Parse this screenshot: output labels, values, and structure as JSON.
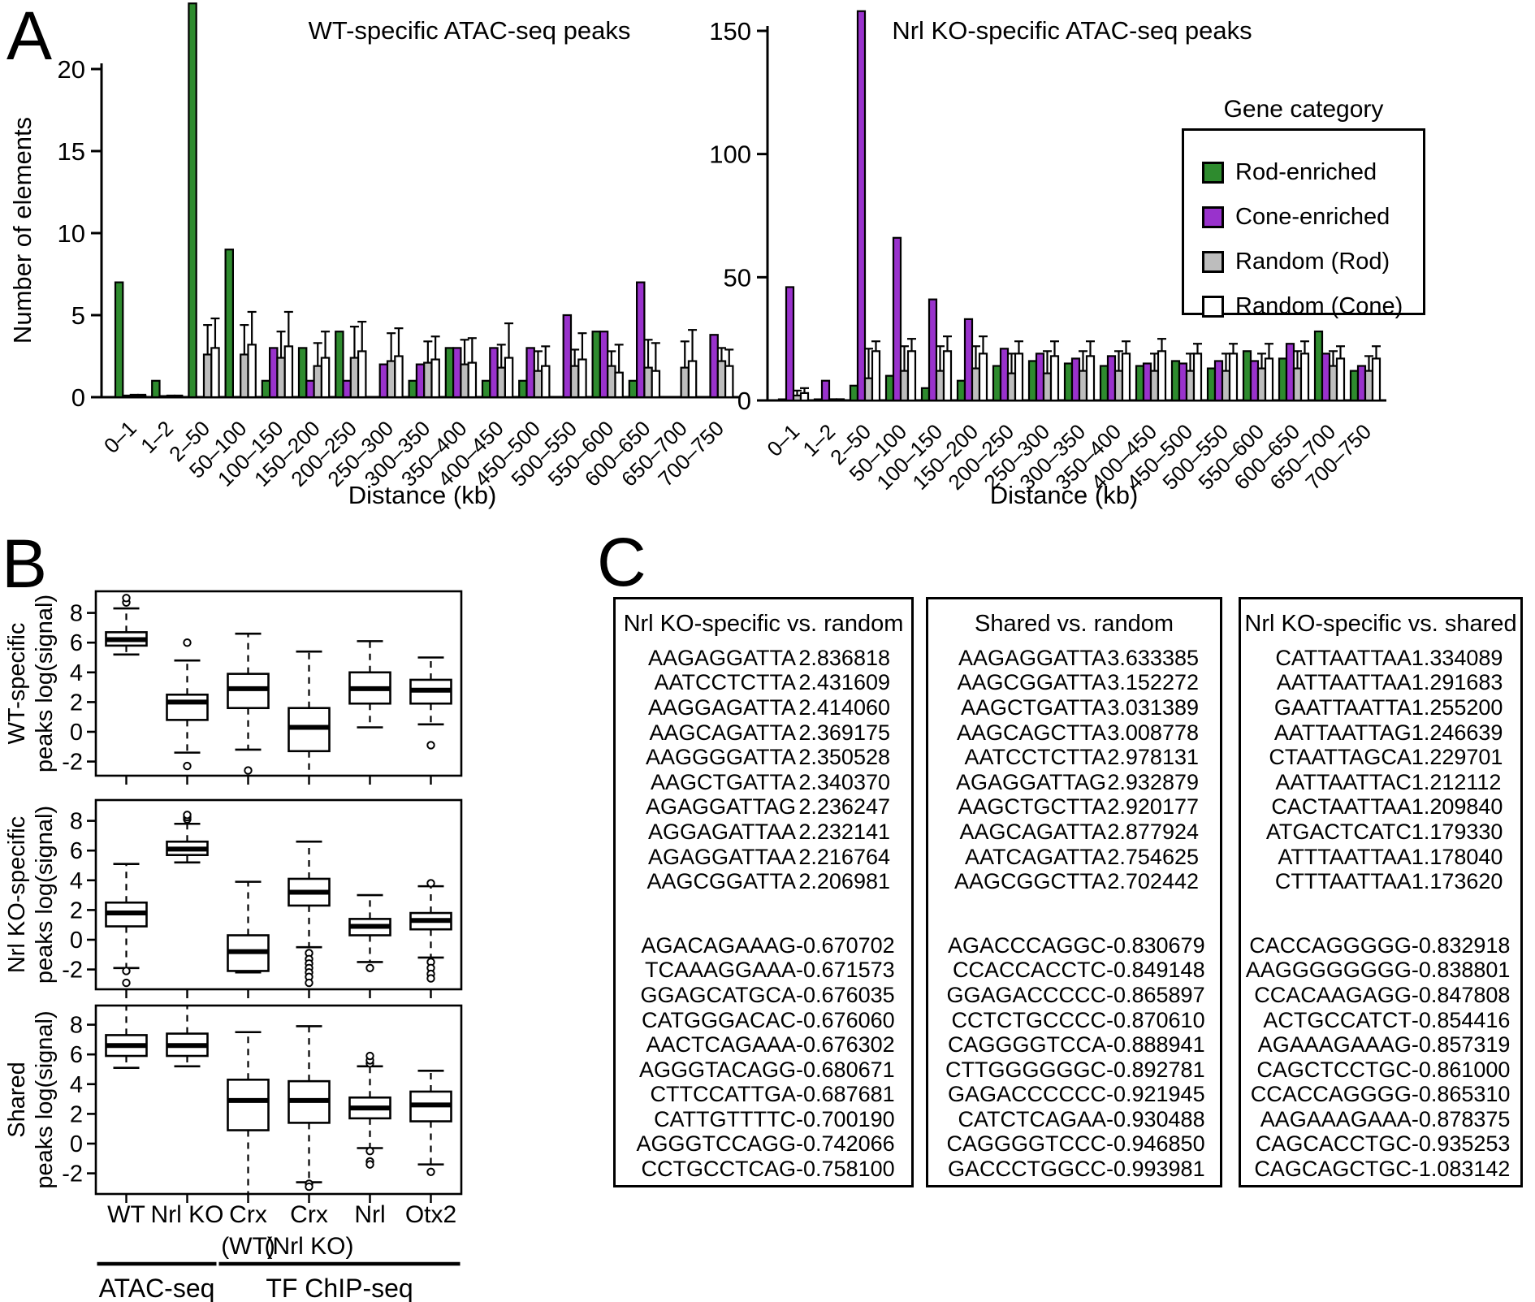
{
  "panels": {
    "a": "A",
    "b": "B",
    "c": "C"
  },
  "legend": {
    "title": "Gene category",
    "items": [
      {
        "label": "Rod-enriched",
        "color": "#2e8b2e"
      },
      {
        "label": "Cone-enriched",
        "color": "#9932cc"
      },
      {
        "label": "Random (Rod)",
        "color": "#bdbdbd"
      },
      {
        "label": "Random (Cone)",
        "color": "#ffffff"
      }
    ]
  },
  "chart_data": [
    {
      "type": "bar",
      "title": "WT-specific ATAC-seq peaks",
      "xlabel": "Distance (kb)",
      "ylabel": "Number of elements",
      "yticks": [
        0,
        5,
        10,
        15,
        20
      ],
      "ylim": [
        0,
        24
      ],
      "grid": false,
      "legend_position": "shared-right",
      "categories": [
        "0–1",
        "1–2",
        "2–50",
        "50–100",
        "100–150",
        "150–200",
        "200–250",
        "250–300",
        "300–350",
        "350–400",
        "400–450",
        "450–500",
        "500–550",
        "550–600",
        "600–650",
        "650–700",
        "700–750"
      ],
      "series": [
        {
          "name": "Rod-enriched",
          "color": "#2e8b2e",
          "values": [
            7,
            1,
            24,
            9,
            1,
            3,
            4,
            0,
            1,
            3,
            1,
            1,
            0,
            4,
            1,
            0,
            0
          ]
        },
        {
          "name": "Cone-enriched",
          "color": "#9932cc",
          "values": [
            0.1,
            0.05,
            0,
            0,
            3,
            1,
            1,
            2,
            2,
            3,
            3,
            3,
            5,
            4,
            7,
            0,
            3.8
          ]
        },
        {
          "name": "Random (Rod)",
          "color": "#bdbdbd",
          "values": [
            0.1,
            0.08,
            2.6,
            2.6,
            2.4,
            1.9,
            2.4,
            2.2,
            2.1,
            2.0,
            1.8,
            1.6,
            1.9,
            1.9,
            1.8,
            1.8,
            2.2
          ],
          "err": [
            0.15,
            0.1,
            4.4,
            4.4,
            4.0,
            3.3,
            4.3,
            3.9,
            3.4,
            3.5,
            3.2,
            2.8,
            2.9,
            2.8,
            3.5,
            3.4,
            3.0
          ]
        },
        {
          "name": "Random (Cone)",
          "color": "#ffffff",
          "values": [
            0.1,
            0.08,
            3.0,
            3.2,
            3.1,
            2.4,
            2.8,
            2.5,
            2.3,
            2.1,
            2.4,
            1.9,
            2.3,
            1.5,
            1.6,
            2.2,
            1.9
          ],
          "err": [
            0.15,
            0.1,
            4.8,
            5.2,
            5.2,
            4.0,
            4.6,
            4.2,
            3.7,
            3.6,
            4.5,
            3.1,
            3.9,
            3.2,
            3.3,
            4.1,
            2.9
          ]
        }
      ]
    },
    {
      "type": "bar",
      "title": "Nrl KO-specific ATAC-seq peaks",
      "xlabel": "Distance (kb)",
      "ylabel": "",
      "yticks": [
        0,
        50,
        100,
        150
      ],
      "ylim": [
        0,
        160
      ],
      "grid": false,
      "categories": [
        "0–1",
        "1–2",
        "2–50",
        "50–100",
        "100–150",
        "150–200",
        "200–250",
        "250–300",
        "300–350",
        "350–400",
        "400–450",
        "450–500",
        "500–550",
        "550–600",
        "600–650",
        "650–700",
        "700–750"
      ],
      "series": [
        {
          "name": "Rod-enriched",
          "color": "#2e8b2e",
          "values": [
            0.3,
            0.3,
            6,
            10,
            5,
            8,
            14,
            16,
            15,
            14,
            14,
            16,
            13,
            20,
            17,
            28,
            12
          ]
        },
        {
          "name": "Cone-enriched",
          "color": "#9932cc",
          "values": [
            46,
            8,
            158,
            66,
            41,
            33,
            21,
            19,
            17,
            18,
            15,
            15,
            16,
            16,
            23,
            19,
            14
          ]
        },
        {
          "name": "Random (Rod)",
          "color": "#bdbdbd",
          "values": [
            2,
            0.3,
            9,
            12,
            12,
            13,
            11,
            11,
            12,
            12,
            12,
            12,
            12,
            13,
            13,
            14,
            12
          ],
          "err": [
            4,
            0.5,
            21,
            22,
            22,
            22,
            19,
            20,
            20,
            20,
            19,
            19,
            19,
            19,
            20,
            20,
            18
          ]
        },
        {
          "name": "Random (Cone)",
          "color": "#ffffff",
          "values": [
            3,
            0.3,
            20,
            20,
            20,
            19,
            19,
            18,
            18,
            19,
            20,
            19,
            19,
            17,
            19,
            17,
            17
          ],
          "err": [
            5,
            0.5,
            24,
            25,
            26,
            26,
            24,
            24,
            24,
            24,
            25,
            23,
            23,
            23,
            24,
            22,
            22
          ]
        }
      ]
    },
    {
      "type": "box",
      "yticks": [
        8,
        6,
        4,
        2,
        0,
        -2
      ],
      "ylim": [
        -3.4,
        9.4
      ],
      "categories": [
        [
          "WT"
        ],
        [
          "Nrl KO"
        ],
        [
          "Crx",
          "(WT)"
        ],
        [
          "Crx",
          "(Nrl KO)"
        ],
        [
          "Nrl"
        ],
        [
          "Otx2"
        ]
      ],
      "group_labels": [
        {
          "label": "ATAC-seq",
          "span": [
            0,
            1
          ]
        },
        {
          "label": "TF ChIP-seq",
          "span": [
            2,
            5
          ]
        }
      ],
      "subplots": [
        {
          "ylabel": [
            "WT-specific",
            "peaks log(signal)"
          ],
          "stats": [
            {
              "lo": 5.2,
              "q1": 5.8,
              "med": 6.2,
              "q3": 6.7,
              "hi": 8.3,
              "out": [
                8.7,
                9.0,
                9.3
              ]
            },
            {
              "lo": -1.4,
              "q1": 0.8,
              "med": 2.0,
              "q3": 2.5,
              "hi": 4.8,
              "out": [
                6.0,
                -2.3
              ]
            },
            {
              "lo": -1.2,
              "q1": 1.6,
              "med": 2.9,
              "q3": 3.9,
              "hi": 6.6,
              "out": [
                -2.6
              ]
            },
            {
              "lo": -3.2,
              "q1": -1.3,
              "med": 0.3,
              "q3": 1.6,
              "hi": 5.4,
              "out": []
            },
            {
              "lo": 0.3,
              "q1": 1.9,
              "med": 2.9,
              "q3": 4.0,
              "hi": 6.1,
              "out": []
            },
            {
              "lo": 0.5,
              "q1": 1.9,
              "med": 2.8,
              "q3": 3.5,
              "hi": 5.0,
              "out": [
                -0.9
              ]
            }
          ]
        },
        {
          "ylabel": [
            "Nrl KO-specific",
            "peaks log(signal)"
          ],
          "stats": [
            {
              "lo": -1.9,
              "q1": 0.9,
              "med": 1.8,
              "q3": 2.5,
              "hi": 5.1,
              "out": [
                -2.1,
                -2.9
              ]
            },
            {
              "lo": 5.2,
              "q1": 5.7,
              "med": 6.1,
              "q3": 6.6,
              "hi": 7.8,
              "out": [
                8.1,
                8.25,
                8.4
              ]
            },
            {
              "lo": -2.2,
              "q1": -2.1,
              "med": -0.8,
              "q3": 0.3,
              "hi": 3.9,
              "out": []
            },
            {
              "lo": -0.5,
              "q1": 2.3,
              "med": 3.2,
              "q3": 4.1,
              "hi": 6.6,
              "out": [
                -0.9,
                -1.3,
                -1.6,
                -1.9,
                -2.2,
                -2.5,
                -2.9
              ]
            },
            {
              "lo": -1.5,
              "q1": 0.3,
              "med": 0.9,
              "q3": 1.4,
              "hi": 3.0,
              "out": [
                -1.9
              ]
            },
            {
              "lo": -1.2,
              "q1": 0.7,
              "med": 1.3,
              "q3": 1.8,
              "hi": 3.6,
              "out": [
                3.8,
                -1.5,
                -1.9,
                -2.3,
                -2.6
              ]
            }
          ]
        },
        {
          "ylabel": [
            "Shared",
            "peaks log(signal)"
          ],
          "stats": [
            {
              "lo": 5.1,
              "q1": 5.9,
              "med": 6.6,
              "q3": 7.3,
              "hi": 9.6,
              "out": []
            },
            {
              "lo": 5.2,
              "q1": 5.9,
              "med": 6.6,
              "q3": 7.4,
              "hi": 9.7,
              "out": []
            },
            {
              "lo": -3.6,
              "q1": 0.9,
              "med": 2.9,
              "q3": 4.3,
              "hi": 7.5,
              "out": []
            },
            {
              "lo": -2.6,
              "q1": 1.4,
              "med": 2.9,
              "q3": 4.2,
              "hi": 7.9,
              "out": [
                -2.7,
                -2.9
              ]
            },
            {
              "lo": -0.3,
              "q1": 1.7,
              "med": 2.4,
              "q3": 3.1,
              "hi": 5.2,
              "out": [
                5.4,
                5.6,
                5.9,
                -0.5,
                -1.2,
                -1.4
              ]
            },
            {
              "lo": -1.4,
              "q1": 1.5,
              "med": 2.6,
              "q3": 3.5,
              "hi": 4.9,
              "out": [
                -1.9
              ]
            }
          ]
        }
      ]
    }
  ],
  "tables": [
    {
      "title": "Nrl KO-specific vs. random",
      "top": [
        {
          "seq": "AAGAGGATTA",
          "val": "2.836818"
        },
        {
          "seq": "AATCCTCTTA",
          "val": "2.431609"
        },
        {
          "seq": "AAGGAGATTA",
          "val": "2.414060"
        },
        {
          "seq": "AAGCAGATTA",
          "val": "2.369175"
        },
        {
          "seq": "AAGGGGATTA",
          "val": "2.350528"
        },
        {
          "seq": "AAGCTGATTA",
          "val": "2.340370"
        },
        {
          "seq": "AGAGGATTAG",
          "val": "2.236247"
        },
        {
          "seq": "AGGAGATTAA",
          "val": "2.232141"
        },
        {
          "seq": "AGAGGATTAA",
          "val": "2.216764"
        },
        {
          "seq": "AAGCGGATTA",
          "val": "2.206981"
        }
      ],
      "bottom": [
        {
          "seq": "AGACAGAAAG",
          "val": "-0.670702"
        },
        {
          "seq": "TCAAAGGAAA",
          "val": "-0.671573"
        },
        {
          "seq": "GGAGCATGCA",
          "val": "-0.676035"
        },
        {
          "seq": "CATGGGACAC",
          "val": "-0.676060"
        },
        {
          "seq": "AACTCAGAAA",
          "val": "-0.676302"
        },
        {
          "seq": "AGGGTACAGG",
          "val": "-0.680671"
        },
        {
          "seq": "CTTCCATTGA",
          "val": "-0.687681"
        },
        {
          "seq": "CATTGTTTTC",
          "val": "-0.700190"
        },
        {
          "seq": "AGGGTCCAGG",
          "val": "-0.742066"
        },
        {
          "seq": "CCTGCCTCAG",
          "val": "-0.758100"
        }
      ]
    },
    {
      "title": "Shared vs. random",
      "top": [
        {
          "seq": "AAGAGGATTA",
          "val": "3.633385"
        },
        {
          "seq": "AAGCGGATTA",
          "val": "3.152272"
        },
        {
          "seq": "AAGCTGATTA",
          "val": "3.031389"
        },
        {
          "seq": "AAGCAGCTTA",
          "val": "3.008778"
        },
        {
          "seq": "AATCCTCTTA",
          "val": "2.978131"
        },
        {
          "seq": "AGAGGATTAG",
          "val": "2.932879"
        },
        {
          "seq": "AAGCTGCTTA",
          "val": "2.920177"
        },
        {
          "seq": "AAGCAGATTA",
          "val": "2.877924"
        },
        {
          "seq": "AATCAGATTA",
          "val": "2.754625"
        },
        {
          "seq": "AAGCGGCTTA",
          "val": "2.702442"
        }
      ],
      "bottom": [
        {
          "seq": "AGACCCAGGC",
          "val": "-0.830679"
        },
        {
          "seq": "CCACCACCTC",
          "val": "-0.849148"
        },
        {
          "seq": "GGAGACCCCC",
          "val": "-0.865897"
        },
        {
          "seq": "CCTCTGCCCC",
          "val": "-0.870610"
        },
        {
          "seq": "CAGGGGTCCA",
          "val": "-0.888941"
        },
        {
          "seq": "CTTGGGGGGC",
          "val": "-0.892781"
        },
        {
          "seq": "GAGACCCCCC",
          "val": "-0.921945"
        },
        {
          "seq": "CATCTCAGAA",
          "val": "-0.930488"
        },
        {
          "seq": "CAGGGGTCCC",
          "val": "-0.946850"
        },
        {
          "seq": "GACCCTGGCC",
          "val": "-0.993981"
        }
      ]
    },
    {
      "title": "Nrl KO-specific vs. shared",
      "top": [
        {
          "seq": "CATTAATTAA",
          "val": "1.334089"
        },
        {
          "seq": "AATTAATTAA",
          "val": "1.291683"
        },
        {
          "seq": "GAATTAATTA",
          "val": "1.255200"
        },
        {
          "seq": "AATTAATTAG",
          "val": "1.246639"
        },
        {
          "seq": "CTAATTAGCA",
          "val": "1.229701"
        },
        {
          "seq": "AATTAATTAC",
          "val": "1.212112"
        },
        {
          "seq": "CACTAATTAA",
          "val": "1.209840"
        },
        {
          "seq": "ATGACTCATC",
          "val": "1.179330"
        },
        {
          "seq": "ATTTAATTAA",
          "val": "1.178040"
        },
        {
          "seq": "CTTTAATTAA",
          "val": "1.173620"
        }
      ],
      "bottom": [
        {
          "seq": "CACCAGGGGG",
          "val": "-0.832918"
        },
        {
          "seq": "AAGGGGGGGG",
          "val": "-0.838801"
        },
        {
          "seq": "CCACAAGAGG",
          "val": "-0.847808"
        },
        {
          "seq": "ACTGCCATCT",
          "val": "-0.854416"
        },
        {
          "seq": "AGAAAGAAAG",
          "val": "-0.857319"
        },
        {
          "seq": "CAGCTCCTGC",
          "val": "-0.861000"
        },
        {
          "seq": "CCACCAGGGG",
          "val": "-0.865310"
        },
        {
          "seq": "AAGAAAGAAA",
          "val": "-0.878375"
        },
        {
          "seq": "CAGCACCTGC",
          "val": "-0.935253"
        },
        {
          "seq": "CAGCAGCTGC",
          "val": "-1.083142"
        }
      ]
    }
  ]
}
